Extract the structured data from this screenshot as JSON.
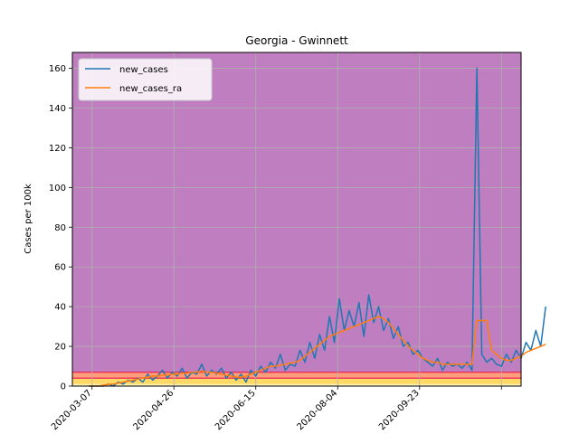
{
  "chart_data": {
    "type": "line",
    "title": "Georgia - Gwinnett",
    "xlabel": "",
    "ylabel": "Cases per 100k",
    "x_ticks": [
      "2020-03-07",
      "2020-04-26",
      "2020-06-15",
      "2020-08-04",
      "2020-09-23"
    ],
    "x_range": [
      "2020-02-24",
      "2020-11-24"
    ],
    "ylim": [
      0,
      168
    ],
    "y_ticks": [
      0,
      20,
      40,
      60,
      80,
      100,
      120,
      140,
      160
    ],
    "grid": true,
    "legend_position": "top-left",
    "risk_bands": [
      {
        "from": 0,
        "to": 1,
        "color": "#fff3b0"
      },
      {
        "from": 1,
        "to": 4,
        "color": "#ffd966"
      },
      {
        "from": 4,
        "to": 7,
        "color": "#ff9c7a"
      },
      {
        "from": 7,
        "to": 168,
        "color": "#bf7ebf"
      }
    ],
    "band_border_color": "#e8245a",
    "series": [
      {
        "name": "new_cases",
        "color": "#1f77b4",
        "start_date": "2020-03-05",
        "step_days": 3,
        "values": [
          0,
          0,
          0,
          0,
          1,
          0,
          2,
          1,
          3,
          2,
          4,
          2,
          6,
          3,
          5,
          8,
          4,
          7,
          5,
          9,
          4,
          7,
          6,
          11,
          5,
          8,
          6,
          9,
          4,
          7,
          3,
          6,
          2,
          8,
          5,
          10,
          7,
          12,
          9,
          16,
          8,
          11,
          10,
          18,
          12,
          22,
          14,
          26,
          18,
          35,
          22,
          44,
          28,
          38,
          30,
          42,
          25,
          46,
          32,
          40,
          28,
          34,
          24,
          30,
          20,
          22,
          16,
          18,
          14,
          12,
          10,
          14,
          8,
          12,
          10,
          11,
          9,
          12,
          8,
          160,
          16,
          12,
          14,
          11,
          10,
          16,
          12,
          18,
          14,
          22,
          18,
          28,
          20,
          40
        ]
      },
      {
        "name": "new_cases_ra",
        "color": "#ff7f0e",
        "start_date": "2020-03-05",
        "step_days": 3,
        "values": [
          0,
          0,
          0,
          0.5,
          0.8,
          1,
          1.5,
          2,
          2.5,
          3,
          3.5,
          4,
          4.5,
          5,
          5,
          5.5,
          5.5,
          6,
          6,
          6.5,
          6.5,
          7,
          7,
          7.5,
          7,
          7,
          6.5,
          6,
          5.5,
          5,
          4.5,
          4.5,
          5,
          6,
          7,
          8,
          9,
          10,
          10,
          10.5,
          11,
          11.5,
          12,
          13,
          15,
          17,
          19,
          21,
          23,
          25,
          26,
          27,
          28,
          29,
          30,
          31,
          32,
          33,
          34,
          35,
          34,
          32,
          29,
          26,
          23,
          20,
          18,
          16,
          14,
          13,
          12,
          12,
          11,
          11,
          11,
          11,
          11,
          11,
          11,
          33,
          33,
          33,
          18,
          16,
          14,
          13,
          13,
          14,
          15,
          17,
          18,
          19,
          20,
          21
        ]
      }
    ]
  }
}
